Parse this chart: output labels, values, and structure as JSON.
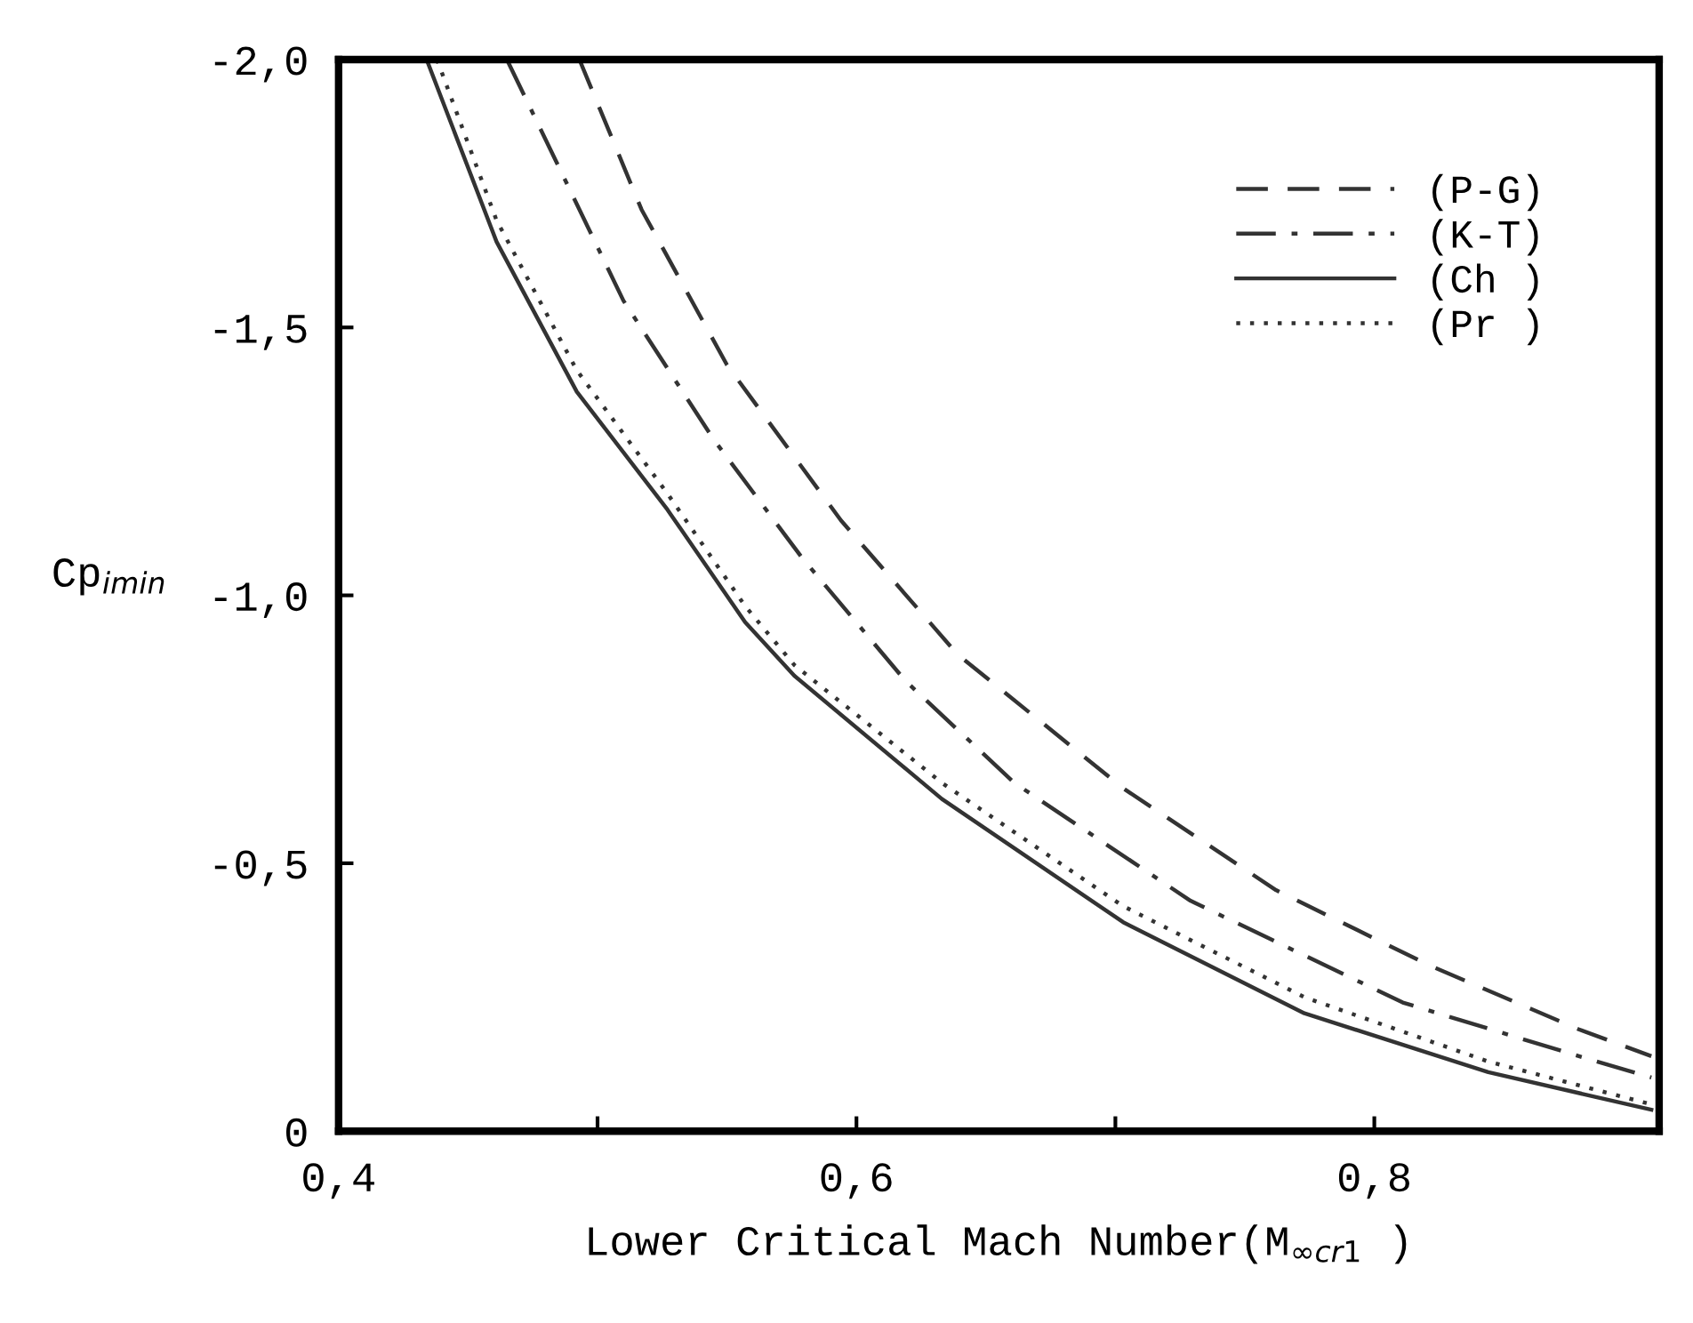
{
  "chart_data": {
    "type": "line",
    "xlabel": "Lower Critical Mach Number(M$_{∞cr1}$ )",
    "ylabel": "Cp$_{imin}$",
    "xlim": [
      0.4,
      0.91
    ],
    "ylim": [
      0,
      -2.0
    ],
    "xticks": [
      {
        "value": 0.4,
        "label": "0,4"
      },
      {
        "value": 0.5,
        "label": null
      },
      {
        "value": 0.6,
        "label": "0,6"
      },
      {
        "value": 0.7,
        "label": null
      },
      {
        "value": 0.8,
        "label": "0,8"
      }
    ],
    "yticks": [
      0,
      {
        "value": -0.5,
        "label": "-0,5"
      },
      {
        "value": -1.0,
        "label": "-1,0"
      },
      {
        "value": -1.5,
        "label": "-1,5"
      },
      {
        "value": -2.0,
        "label": "-2,0"
      }
    ],
    "grid": false,
    "legend": "top right",
    "marker": "none",
    "series": [
      {
        "name": "(P-G)",
        "color": "#333333",
        "line_style": "dashed",
        "x": [
          0.493,
          0.517,
          0.55,
          0.594,
          0.639,
          0.703,
          0.762,
          0.821,
          0.879,
          0.907
        ],
        "values": [
          -2.0,
          -1.72,
          -1.43,
          -1.14,
          -0.89,
          -0.64,
          -0.45,
          -0.31,
          -0.19,
          -0.14
        ]
      },
      {
        "name": "(K-T)",
        "color": "#333333",
        "line_style": "dashdot",
        "x": [
          0.465,
          0.51,
          0.545,
          0.579,
          0.619,
          0.661,
          0.729,
          0.811,
          0.879,
          0.907
        ],
        "values": [
          -2.0,
          -1.55,
          -1.29,
          -1.07,
          -0.84,
          -0.65,
          -0.43,
          -0.24,
          -0.14,
          -0.1
        ]
      },
      {
        "name": "(Ch )",
        "color": "#333333",
        "line_style": "solid",
        "x": [
          0.434,
          0.461,
          0.492,
          0.527,
          0.557,
          0.576,
          0.633,
          0.703,
          0.773,
          0.844,
          0.907
        ],
        "values": [
          -2.0,
          -1.66,
          -1.38,
          -1.16,
          -0.95,
          -0.85,
          -0.62,
          -0.39,
          -0.22,
          -0.11,
          -0.04
        ]
      },
      {
        "name": "(Pr )",
        "color": "#333333",
        "line_style": "dotted",
        "x": [
          0.438,
          0.461,
          0.492,
          0.527,
          0.557,
          0.576,
          0.633,
          0.703,
          0.773,
          0.844,
          0.907
        ],
        "values": [
          -2.0,
          -1.7,
          -1.42,
          -1.19,
          -0.98,
          -0.87,
          -0.65,
          -0.42,
          -0.25,
          -0.13,
          -0.05
        ]
      }
    ]
  }
}
